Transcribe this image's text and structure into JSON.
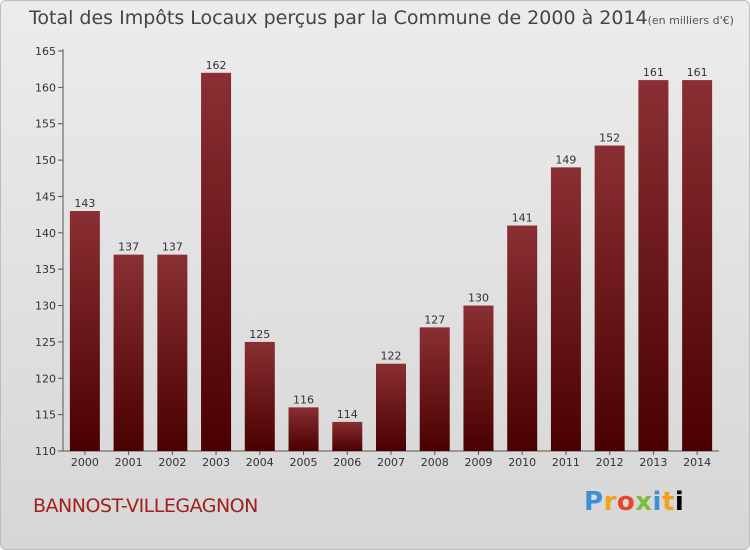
{
  "header": {
    "title": "Total des Impôts Locaux perçus par la Commune de 2000 à 2014",
    "unit": "(en milliers d'€)"
  },
  "footer": {
    "commune": "BANNOST-VILLEGAGNON",
    "logo_letters": [
      "P",
      "r",
      "o",
      "x",
      "i",
      "t",
      "i"
    ]
  },
  "colors": {
    "bar_top": "#8a2f33",
    "bar_bottom": "#4a0000",
    "commune_text": "#a01f1f"
  },
  "chart_data": {
    "type": "bar",
    "title": "Total des Impôts Locaux perçus par la Commune de 2000 à 2014",
    "xlabel": "",
    "ylabel": "",
    "categories": [
      "2000",
      "2001",
      "2002",
      "2003",
      "2004",
      "2005",
      "2006",
      "2007",
      "2008",
      "2009",
      "2010",
      "2011",
      "2012",
      "2013",
      "2014"
    ],
    "values": [
      143,
      137,
      137,
      162,
      125,
      116,
      114,
      122,
      127,
      130,
      141,
      149,
      152,
      161,
      161
    ],
    "ylim": [
      110,
      165
    ],
    "yticks": [
      110,
      115,
      120,
      125,
      130,
      135,
      140,
      145,
      150,
      155,
      160,
      165
    ],
    "grid": false,
    "data_labels": true
  }
}
